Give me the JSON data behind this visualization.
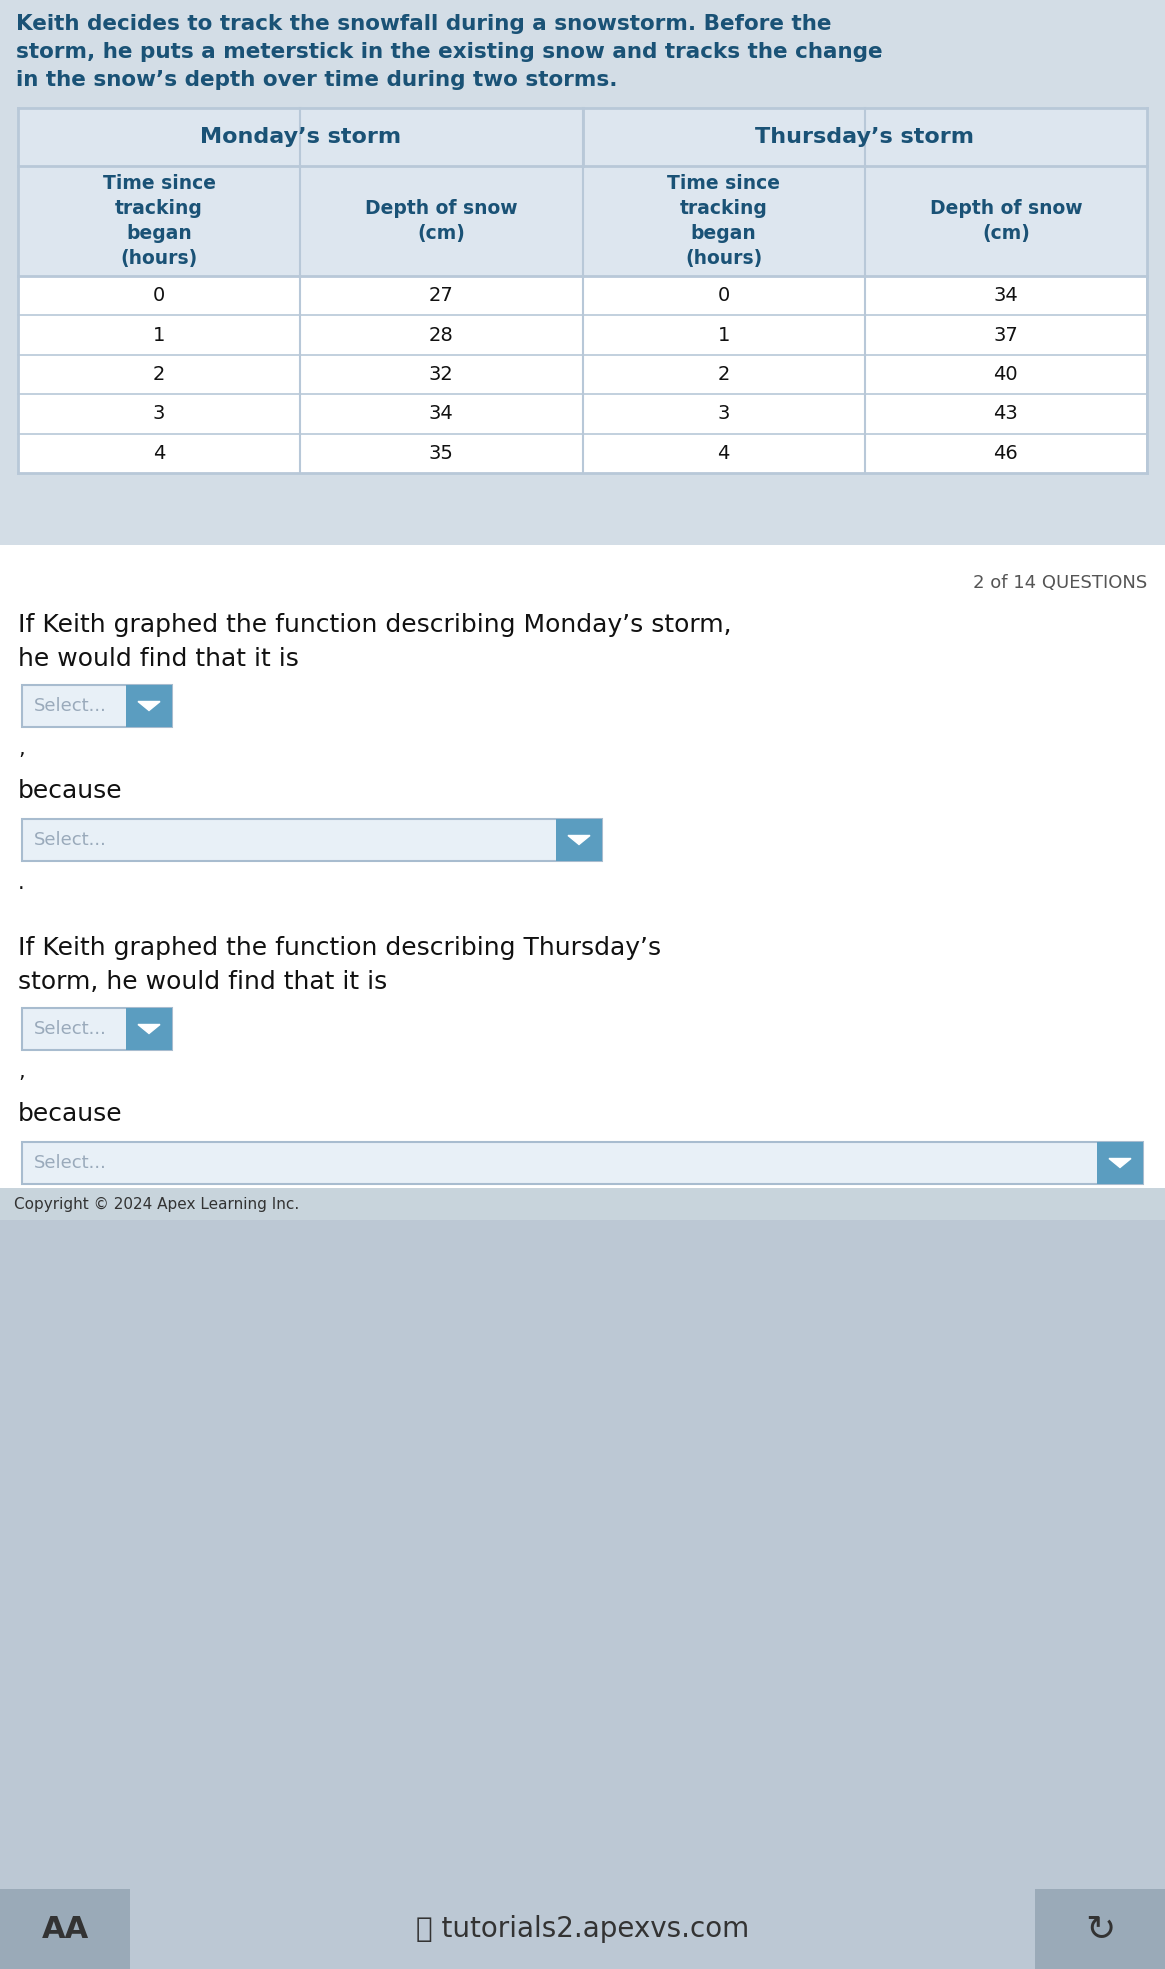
{
  "page_bg": "#d3dde6",
  "intro_bg": "#d3dde6",
  "intro_text": "Keith decides to track the snowfall during a snowstorm. Before the\nstorm, he puts a meterstick in the existing snow and tracks the change\nin the snow’s depth over time during two storms.",
  "intro_text_color": "#1a5276",
  "table_outer_bg": "#d3dde6",
  "table_header_bg": "#dde6ef",
  "table_border_color": "#b8c8d8",
  "table_data_bg": "#ffffff",
  "header_text_color": "#1a5276",
  "monday_header": "Monday’s storm",
  "thursday_header": "Thursday’s storm",
  "col1_header": "Time since\ntracking\nbegan\n(hours)",
  "col2_header": "Depth of snow\n(cm)",
  "col3_header": "Time since\ntracking\nbegan\n(hours)",
  "col4_header": "Depth of snow\n(cm)",
  "monday_time": [
    0,
    1,
    2,
    3,
    4
  ],
  "monday_depth": [
    27,
    28,
    32,
    34,
    35
  ],
  "thursday_time": [
    0,
    1,
    2,
    3,
    4
  ],
  "thursday_depth": [
    34,
    37,
    40,
    43,
    46
  ],
  "question_count": "2 of 14 QUESTIONS",
  "question_count_color": "#555555",
  "body_bg": "#ffffff",
  "q1_text_line1": "If Keith graphed the function describing Monday’s storm,",
  "q1_text_line2": "he would find that it is",
  "q1_select_label": "Select...",
  "q1_comma": ",",
  "q1_because": "because",
  "q1_because_select": "Select...",
  "q1_period": ".",
  "q2_text_line1": "If Keith graphed the function describing Thursday’s",
  "q2_text_line2": "storm, he would find that it is",
  "q2_select_label": "Select...",
  "q2_comma": ",",
  "q2_because": "because",
  "q2_because_select": "Select...",
  "select_bg": "#e8f0f7",
  "select_border_color": "#a8bccf",
  "select_text_color": "#9aaabb",
  "dropdown_bg": "#5b9dc0",
  "copyright": "Copyright © 2024 Apex Learning Inc.",
  "copyright_bg": "#c8d4dc",
  "copyright_text_color": "#333333",
  "footer_bg": "#bcc8d4",
  "nav_bg": "#bcc8d4",
  "nav_separator_bg": "#9aaab8",
  "nav_text_color": "#333333",
  "body_text_color": "#111111"
}
